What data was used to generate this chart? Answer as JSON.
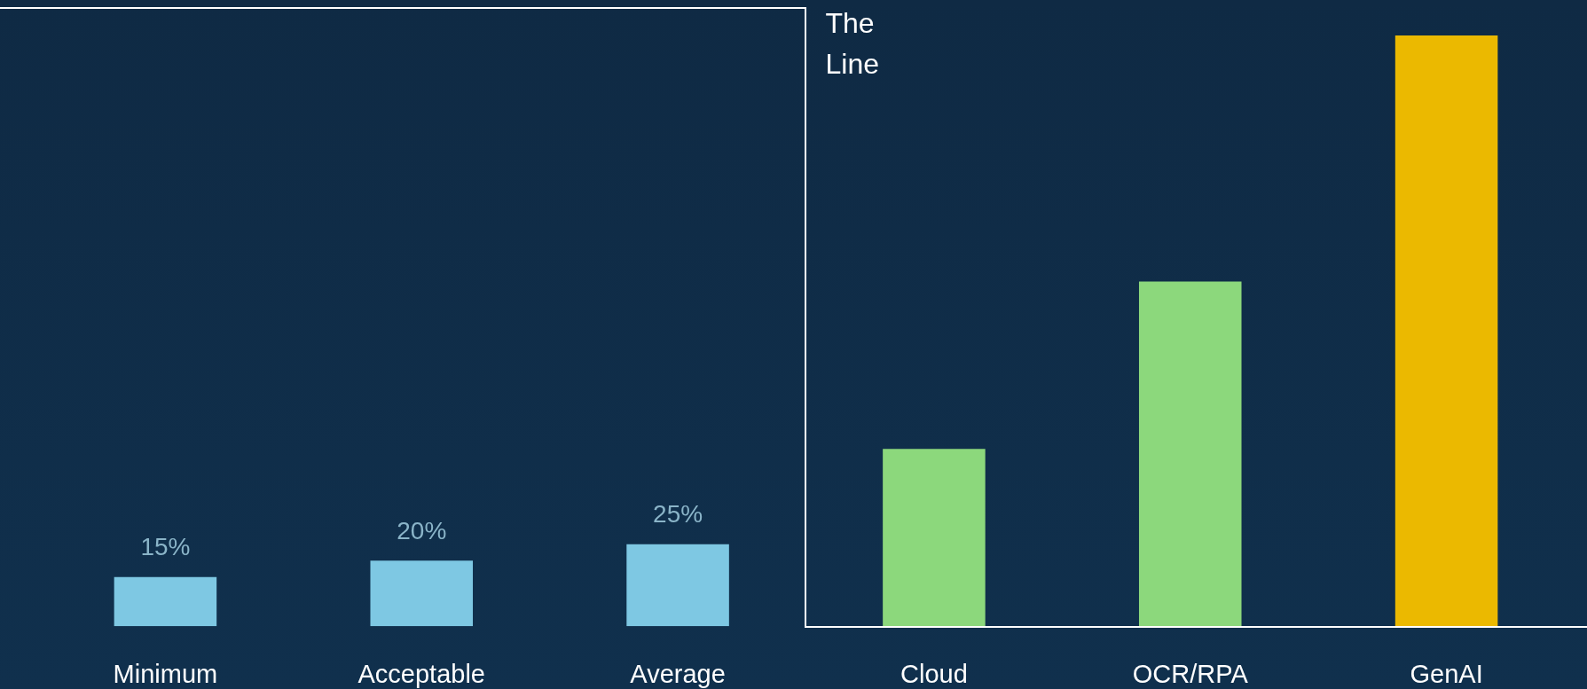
{
  "chart_data": {
    "type": "bar",
    "categories": [
      "Minimum",
      "Acceptable",
      "Average",
      "Cloud",
      "OCR/RPA",
      "GenAI"
    ],
    "values": [
      15,
      20,
      25,
      54,
      105,
      180
    ],
    "colors": [
      "#7ec8e3",
      "#7ec8e3",
      "#7ec8e3",
      "#8cd87c",
      "#8cd87c",
      "#ebb900"
    ],
    "value_labels": [
      "15%",
      "20%",
      "25%",
      null,
      null,
      null
    ],
    "annotations": [
      "The\nLine"
    ],
    "grid": false,
    "legend": false
  }
}
